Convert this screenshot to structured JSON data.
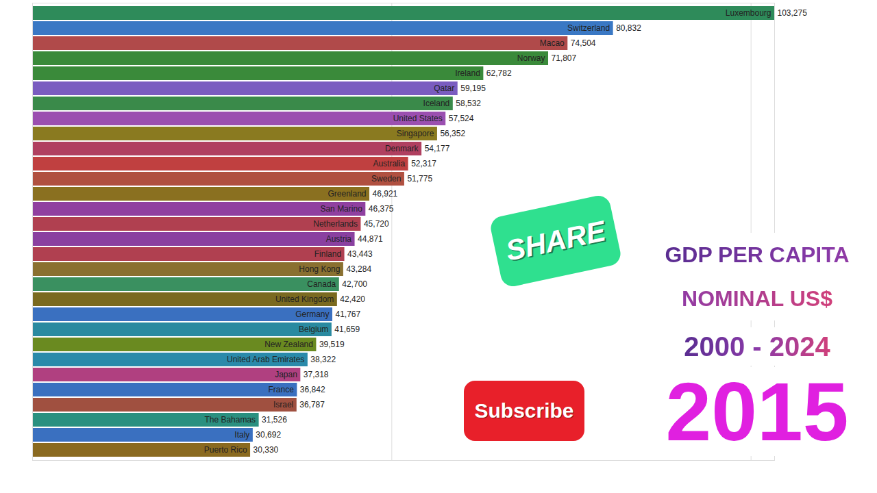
{
  "chart_data": {
    "type": "bar",
    "orientation": "horizontal",
    "title": "GDP PER CAPITA NOMINAL US$",
    "subtitle": "2000 - 2024",
    "annotations": [
      "2015",
      "SHARE",
      "Subscribe"
    ],
    "categories": [
      "Luxembourg",
      "Switzerland",
      "Macao",
      "Norway",
      "Ireland",
      "Qatar",
      "Iceland",
      "United States",
      "Singapore",
      "Denmark",
      "Australia",
      "Sweden",
      "Greenland",
      "San Marino",
      "Netherlands",
      "Austria",
      "Finland",
      "Hong Kong",
      "Canada",
      "United Kingdom",
      "Germany",
      "Belgium",
      "New Zealand",
      "United Arab Emirates",
      "Japan",
      "France",
      "Israel",
      "The Bahamas",
      "Italy",
      "Puerto Rico"
    ],
    "values": [
      103275,
      80832,
      74504,
      71807,
      62782,
      59195,
      58532,
      57524,
      56352,
      54177,
      52317,
      51775,
      46921,
      46375,
      45720,
      44871,
      43443,
      43284,
      42700,
      42420,
      41767,
      41659,
      39519,
      38322,
      37318,
      36842,
      36787,
      31526,
      30692,
      30330
    ],
    "value_labels": [
      "103,275",
      "80,832",
      "74,504",
      "71,807",
      "62,782",
      "59,195",
      "58,532",
      "57,524",
      "56,352",
      "54,177",
      "52,317",
      "51,775",
      "46,921",
      "46,375",
      "45,720",
      "44,871",
      "43,443",
      "43,284",
      "42,700",
      "42,420",
      "41,767",
      "41,659",
      "39,519",
      "38,322",
      "37,318",
      "36,842",
      "36,787",
      "31,526",
      "30,692",
      "30,330"
    ],
    "colors": [
      "#2e8b5a",
      "#3a78c4",
      "#b04a4a",
      "#3a8a3a",
      "#3a8a3a",
      "#7a5cc0",
      "#3a8a4a",
      "#9b4fb0",
      "#8a7a20",
      "#b04060",
      "#c04040",
      "#b05040",
      "#8a7020",
      "#9040a0",
      "#b04050",
      "#8a40a0",
      "#b04050",
      "#8a7030",
      "#3a9060",
      "#7a6a20",
      "#3a70c0",
      "#2a8aa0",
      "#6a8a20",
      "#2a8aaa",
      "#b04080",
      "#3a70c0",
      "#a05040",
      "#2a9080",
      "#3a70c0",
      "#8a6a20"
    ],
    "xlim": [
      0,
      103275
    ],
    "xticks": [
      0,
      50000,
      100000
    ],
    "grid": true,
    "tick_labels": false,
    "data_labels": true
  }
}
